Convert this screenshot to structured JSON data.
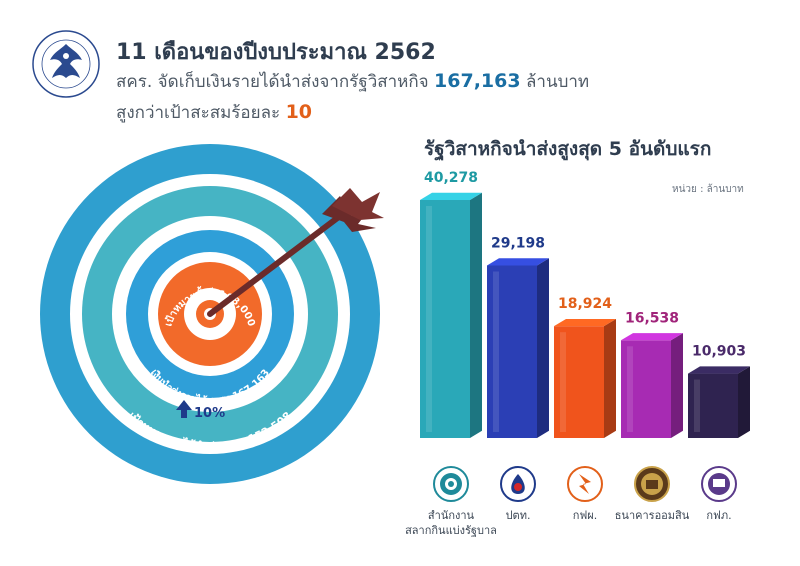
{
  "header": {
    "title": "11 เดือนของปีงบประมาณ 2562",
    "line2_prefix": "สคร. จัดเก็บเงินรายได้นำส่งจากรัฐวิสาหกิจ",
    "line2_value": "167,163",
    "line2_suffix": "ล้านบาท",
    "line3_prefix": "สูงกว่าเป้าสะสมร้อยละ",
    "line3_value": "10"
  },
  "target_graphic": {
    "inner_label": "เป้าหมายทั้งปี 168,000",
    "middle_label": "เงินนำส่งรายได้สะสม 167,163",
    "outer_label": "เป้าหมายรายได้นำส่งสะสม 152,508",
    "increase_label": "10%"
  },
  "chart_data": {
    "type": "bar",
    "title": "รัฐวิสาหกิจนำส่งสูงสุด 5 อันดับแรก",
    "unit_label": "หน่วย : ล้านบาท",
    "categories": [
      "สำนักงานสลากกินแบ่งรัฐบาล",
      "ปตท.",
      "กฟผ.",
      "ธนาคารออมสิน",
      "กฟภ."
    ],
    "value_labels": [
      "40,278",
      "29,198",
      "18,924",
      "16,538",
      "10,903"
    ],
    "values": [
      40278,
      29198,
      18924,
      16538,
      10903
    ],
    "colors": [
      "#2aa8b8",
      "#2b3fb5",
      "#f0541c",
      "#a72bb3",
      "#2f2350"
    ],
    "label_colors": [
      "#1e9aa3",
      "#1f3a8a",
      "#e2601a",
      "#a0247a",
      "#4a2a6a"
    ]
  },
  "org_labels": [
    {
      "line1": "สำนักงาน",
      "line2": "สลากกินแบ่งรัฐบาล"
    },
    {
      "line1": "ปตท.",
      "line2": ""
    },
    {
      "line1": "กฟผ.",
      "line2": ""
    },
    {
      "line1": "ธนาคารออมสิน",
      "line2": ""
    },
    {
      "line1": "กฟภ.",
      "line2": ""
    }
  ]
}
